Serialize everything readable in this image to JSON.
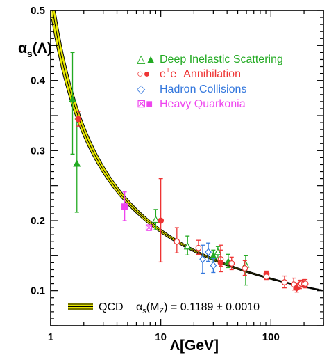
{
  "chart_data": {
    "type": "scatter",
    "xscale": "log",
    "xlim": [
      1,
      300
    ],
    "ylim": [
      0.05,
      0.5
    ],
    "xlabel": "Λ[GeV]",
    "ylabel_main": "α",
    "ylabel_sub": "s",
    "ylabel_tail": "(Λ)",
    "x_tick_labels": [
      {
        "value": 1,
        "label": "1"
      },
      {
        "value": 10,
        "label": "10"
      },
      {
        "value": 100,
        "label": "100"
      }
    ],
    "y_tick_labels": [
      {
        "value": 0.1,
        "label": "0.1"
      },
      {
        "value": 0.2,
        "label": "0.2"
      },
      {
        "value": 0.3,
        "label": "0.3"
      },
      {
        "value": 0.4,
        "label": "0.4"
      },
      {
        "value": 0.5,
        "label": "0.5"
      }
    ],
    "curve": {
      "alphas_mz": 0.1189,
      "uncertainty": 0.001,
      "mz": 91.19,
      "band_color": "#e8e800",
      "line_color": "#000000"
    },
    "qcd_legend": {
      "label": "QCD",
      "formula_main": "α",
      "formula_sub": "s",
      "formula_paren": "(M",
      "formula_paren_sub": "Z",
      "formula_rest": ") = 0.1189 ± 0.0010"
    },
    "legend": [
      {
        "symbols": "△▲",
        "label": "Deep Inelastic Scattering",
        "color": "#22aa22"
      },
      {
        "symbols": "○●",
        "label": "Annihilation",
        "prefix": "e",
        "sup1": "+",
        "mid": "e",
        "sup2": "−",
        "color": "#ee3333"
      },
      {
        "symbols": "◇",
        "label": "Hadron Collisions",
        "color": "#3377dd"
      },
      {
        "symbols": "⊠■",
        "label": "Heavy Quarkonia",
        "color": "#ee44ee"
      }
    ],
    "series": [
      {
        "name": "Deep Inelastic Scattering",
        "color": "#22aa22",
        "points": [
          {
            "x": 1.58,
            "y": 0.373,
            "lo": 0.295,
            "hi": 0.44,
            "filled": true,
            "shape": "triangle"
          },
          {
            "x": 1.73,
            "y": 0.281,
            "lo": 0.212,
            "hi": 0.345,
            "filled": true,
            "shape": "triangle"
          },
          {
            "x": 9.0,
            "y": 0.201,
            "lo": 0.187,
            "hi": 0.216,
            "filled": false,
            "shape": "triangle"
          },
          {
            "x": 17.5,
            "y": 0.163,
            "lo": 0.151,
            "hi": 0.178,
            "filled": false,
            "shape": "triangle"
          },
          {
            "x": 30,
            "y": 0.149,
            "lo": 0.141,
            "hi": 0.158,
            "filled": true,
            "shape": "triangle"
          },
          {
            "x": 33,
            "y": 0.155,
            "lo": 0.147,
            "hi": 0.163,
            "filled": false,
            "shape": "triangle"
          },
          {
            "x": 41,
            "y": 0.141,
            "lo": 0.133,
            "hi": 0.152,
            "filled": true,
            "shape": "triangle"
          },
          {
            "x": 59,
            "y": 0.137,
            "lo": 0.108,
            "hi": 0.15,
            "filled": false,
            "shape": "triangle"
          }
        ]
      },
      {
        "name": "e+e- Annihilation",
        "color": "#ee3333",
        "points": [
          {
            "x": 1.78,
            "y": 0.345,
            "lo": 0.335,
            "hi": 0.356,
            "filled": true,
            "shape": "circle"
          },
          {
            "x": 10.0,
            "y": 0.2,
            "lo": 0.141,
            "hi": 0.26,
            "filled": true,
            "shape": "circle"
          },
          {
            "x": 14.0,
            "y": 0.17,
            "lo": 0.154,
            "hi": 0.19,
            "filled": false,
            "shape": "circle"
          },
          {
            "x": 22.0,
            "y": 0.161,
            "lo": 0.152,
            "hi": 0.172,
            "filled": false,
            "shape": "circle"
          },
          {
            "x": 35.0,
            "y": 0.145,
            "lo": 0.135,
            "hi": 0.158,
            "filled": false,
            "shape": "circle"
          },
          {
            "x": 35.0,
            "y": 0.14,
            "lo": 0.127,
            "hi": 0.165,
            "filled": true,
            "shape": "circle"
          },
          {
            "x": 44.0,
            "y": 0.139,
            "lo": 0.13,
            "hi": 0.148,
            "filled": false,
            "shape": "circle"
          },
          {
            "x": 58.0,
            "y": 0.132,
            "lo": 0.122,
            "hi": 0.143,
            "filled": false,
            "shape": "circle"
          },
          {
            "x": 91.2,
            "y": 0.124,
            "lo": 0.12,
            "hi": 0.128,
            "filled": true,
            "shape": "circle"
          },
          {
            "x": 91.2,
            "y": 0.12,
            "lo": 0.116,
            "hi": 0.124,
            "filled": false,
            "shape": "circle"
          },
          {
            "x": 133,
            "y": 0.112,
            "lo": 0.104,
            "hi": 0.121,
            "filled": false,
            "shape": "circle"
          },
          {
            "x": 161,
            "y": 0.109,
            "lo": 0.101,
            "hi": 0.118,
            "filled": false,
            "shape": "circle"
          },
          {
            "x": 172,
            "y": 0.104,
            "lo": 0.098,
            "hi": 0.111,
            "filled": true,
            "shape": "circle"
          },
          {
            "x": 183,
            "y": 0.109,
            "lo": 0.103,
            "hi": 0.115,
            "filled": false,
            "shape": "circle"
          },
          {
            "x": 189,
            "y": 0.11,
            "lo": 0.105,
            "hi": 0.115,
            "filled": false,
            "shape": "circle"
          },
          {
            "x": 200,
            "y": 0.11,
            "lo": 0.105,
            "hi": 0.116,
            "filled": false,
            "shape": "circle"
          },
          {
            "x": 206,
            "y": 0.11,
            "lo": 0.104,
            "hi": 0.116,
            "filled": false,
            "shape": "circle"
          }
        ]
      },
      {
        "name": "Hadron Collisions",
        "color": "#3377dd",
        "points": [
          {
            "x": 24,
            "y": 0.145,
            "lo": 0.125,
            "hi": 0.165,
            "filled": false,
            "shape": "diamond"
          },
          {
            "x": 27,
            "y": 0.155,
            "lo": 0.142,
            "hi": 0.168,
            "filled": false,
            "shape": "diamond"
          },
          {
            "x": 30,
            "y": 0.136,
            "lo": 0.126,
            "hi": 0.146,
            "filled": false,
            "shape": "diamond"
          }
        ]
      },
      {
        "name": "Heavy Quarkonia",
        "color": "#ee44ee",
        "points": [
          {
            "x": 4.7,
            "y": 0.22,
            "lo": 0.2,
            "hi": 0.241,
            "filled": true,
            "shape": "squarex"
          },
          {
            "x": 7.8,
            "y": 0.19,
            "lo": 0.186,
            "hi": 0.194,
            "filled": false,
            "shape": "squarex"
          }
        ]
      }
    ]
  }
}
